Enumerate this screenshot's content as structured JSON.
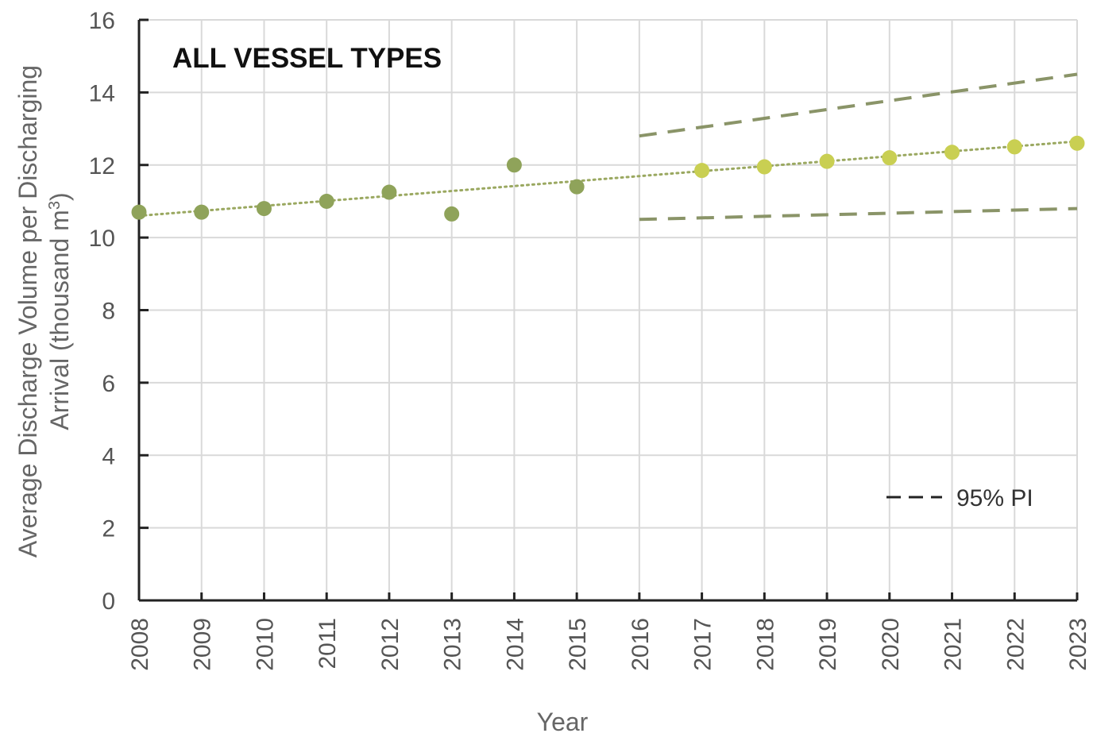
{
  "chart_data": {
    "type": "scatter",
    "title": "ALL VESSEL TYPES",
    "xlabel": "Year",
    "ylabel_line1": "Average Discharge Volume per Discharging",
    "ylabel_line2_prefix": "Arrival (thousand m",
    "ylabel_line2_sup": "3",
    "ylabel_line2_suffix": ")",
    "x_ticks": [
      "2008",
      "2009",
      "2010",
      "2011",
      "2012",
      "2013",
      "2014",
      "2015",
      "2016",
      "2017",
      "2018",
      "2019",
      "2020",
      "2021",
      "2022",
      "2023"
    ],
    "y_ticks": [
      "0",
      "2",
      "4",
      "6",
      "8",
      "10",
      "12",
      "14",
      "16"
    ],
    "ylim": [
      0,
      16
    ],
    "grid": true,
    "series": [
      {
        "kind": "observed",
        "color": "#8fa35a",
        "points": [
          {
            "x": 2008,
            "y": 10.7
          },
          {
            "x": 2009,
            "y": 10.7
          },
          {
            "x": 2010,
            "y": 10.8
          },
          {
            "x": 2011,
            "y": 11.0
          },
          {
            "x": 2012,
            "y": 11.25
          },
          {
            "x": 2013,
            "y": 10.65
          },
          {
            "x": 2014,
            "y": 12.0
          },
          {
            "x": 2015,
            "y": 11.4
          }
        ]
      },
      {
        "kind": "projected",
        "color": "#c9cf52",
        "points": [
          {
            "x": 2017,
            "y": 11.85
          },
          {
            "x": 2018,
            "y": 11.95
          },
          {
            "x": 2019,
            "y": 12.1
          },
          {
            "x": 2020,
            "y": 12.2
          },
          {
            "x": 2021,
            "y": 12.35
          },
          {
            "x": 2022,
            "y": 12.5
          },
          {
            "x": 2023,
            "y": 12.6
          }
        ]
      }
    ],
    "trend_line": {
      "color": "#9aa860",
      "start": {
        "x": 2008,
        "y": 10.6
      },
      "end": {
        "x": 2023,
        "y": 12.65
      }
    },
    "prediction_interval": {
      "name": "95% PI",
      "color": "#8a9468",
      "upper": {
        "start": {
          "x": 2016,
          "y": 12.8
        },
        "end": {
          "x": 2023,
          "y": 14.5
        }
      },
      "lower": {
        "start": {
          "x": 2016,
          "y": 10.5
        },
        "end": {
          "x": 2023,
          "y": 10.8
        }
      }
    },
    "legend_position": "bottom-right"
  }
}
